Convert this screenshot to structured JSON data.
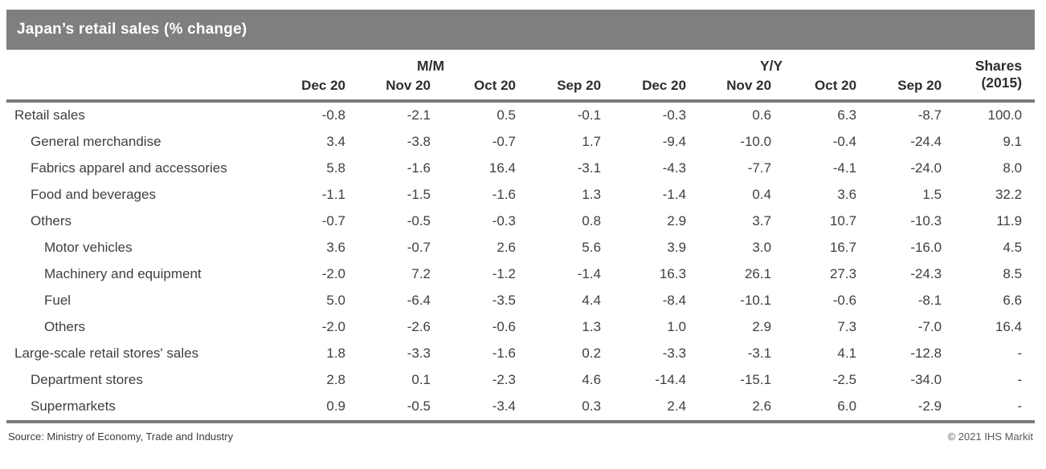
{
  "colors": {
    "title_bar_background": "#7f7f7f",
    "title_text": "#ffffff",
    "rule_gray": "#7a7a7a",
    "body_text": "#3f3f3f"
  },
  "chart_data": {
    "type": "table",
    "title": "Japan’s retail sales (% change)",
    "column_groups": [
      "M/M",
      "Y/Y"
    ],
    "shares_header": {
      "line1": "Shares",
      "line2": "(2015)"
    },
    "columns": [
      "Dec 20",
      "Nov 20",
      "Oct 20",
      "Sep 20",
      "Dec 20",
      "Nov 20",
      "Oct 20",
      "Sep 20"
    ],
    "rows": [
      {
        "label": "Retail sales",
        "indent": 0,
        "values": [
          "-0.8",
          "-2.1",
          "0.5",
          "-0.1",
          "-0.3",
          "0.6",
          "6.3",
          "-8.7",
          "100.0"
        ]
      },
      {
        "label": "General merchandise",
        "indent": 1,
        "values": [
          "3.4",
          "-3.8",
          "-0.7",
          "1.7",
          "-9.4",
          "-10.0",
          "-0.4",
          "-24.4",
          "9.1"
        ]
      },
      {
        "label": "Fabrics apparel and accessories",
        "indent": 1,
        "values": [
          "5.8",
          "-1.6",
          "16.4",
          "-3.1",
          "-4.3",
          "-7.7",
          "-4.1",
          "-24.0",
          "8.0"
        ]
      },
      {
        "label": "Food and beverages",
        "indent": 1,
        "values": [
          "-1.1",
          "-1.5",
          "-1.6",
          "1.3",
          "-1.4",
          "0.4",
          "3.6",
          "1.5",
          "32.2"
        ]
      },
      {
        "label": "Others",
        "indent": 1,
        "values": [
          "-0.7",
          "-0.5",
          "-0.3",
          "0.8",
          "2.9",
          "3.7",
          "10.7",
          "-10.3",
          "11.9"
        ]
      },
      {
        "label": "Motor vehicles",
        "indent": 2,
        "values": [
          "3.6",
          "-0.7",
          "2.6",
          "5.6",
          "3.9",
          "3.0",
          "16.7",
          "-16.0",
          "4.5"
        ]
      },
      {
        "label": "Machinery and equipment",
        "indent": 2,
        "values": [
          "-2.0",
          "7.2",
          "-1.2",
          "-1.4",
          "16.3",
          "26.1",
          "27.3",
          "-24.3",
          "8.5"
        ]
      },
      {
        "label": "Fuel",
        "indent": 2,
        "values": [
          "5.0",
          "-6.4",
          "-3.5",
          "4.4",
          "-8.4",
          "-10.1",
          "-0.6",
          "-8.1",
          "6.6"
        ]
      },
      {
        "label": "Others",
        "indent": 2,
        "values": [
          "-2.0",
          "-2.6",
          "-0.6",
          "1.3",
          "1.0",
          "2.9",
          "7.3",
          "-7.0",
          "16.4"
        ]
      },
      {
        "label": "Large-scale retail stores' sales",
        "indent": 0,
        "values": [
          "1.8",
          "-3.3",
          "-1.6",
          "0.2",
          "-3.3",
          "-3.1",
          "4.1",
          "-12.8",
          "-"
        ]
      },
      {
        "label": "Department stores",
        "indent": 1,
        "values": [
          "2.8",
          "0.1",
          "-2.3",
          "4.6",
          "-14.4",
          "-15.1",
          "-2.5",
          "-34.0",
          "-"
        ]
      },
      {
        "label": "Supermarkets",
        "indent": 1,
        "values": [
          "0.9",
          "-0.5",
          "-3.4",
          "0.3",
          "2.4",
          "2.6",
          "6.0",
          "-2.9",
          "-"
        ]
      }
    ]
  },
  "footer": {
    "source": "Source: Ministry of Economy, Trade and Industry",
    "copyright": "© 2021 IHS Markit"
  }
}
